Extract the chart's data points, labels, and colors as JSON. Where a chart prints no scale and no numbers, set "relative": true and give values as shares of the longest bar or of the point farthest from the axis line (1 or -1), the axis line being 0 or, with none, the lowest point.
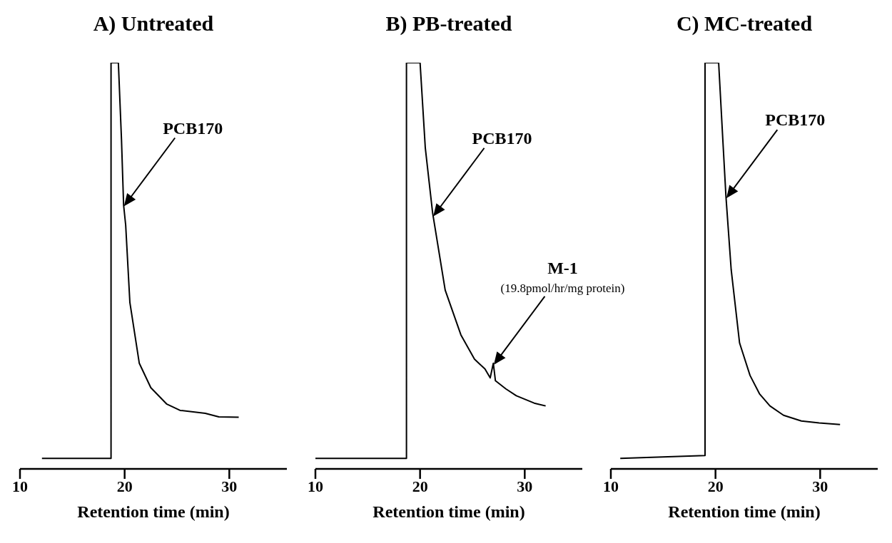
{
  "chart_data": [
    {
      "type": "line",
      "title": "A) Untreated",
      "xlabel": "Retention time (min)",
      "xlim": [
        10,
        35.5
      ],
      "xticks": [
        10,
        20,
        30
      ],
      "relative": true,
      "series": [
        {
          "color": "#000000",
          "x": [
            12.1,
            18.7,
            18.7,
            19.4,
            19.7,
            19.9,
            20.1,
            20.5,
            21.4,
            22.5,
            24.0,
            25.3,
            27.7,
            29.0,
            30.9
          ],
          "values": [
            0.026,
            0.026,
            1,
            1,
            0.81,
            0.65,
            0.6,
            0.41,
            0.26,
            0.2,
            0.16,
            0.144,
            0.137,
            0.128,
            0.127
          ]
        }
      ],
      "annotations": [
        {
          "text": "PCB170",
          "x": 19.9
        }
      ]
    },
    {
      "type": "line",
      "title": "B) PB-treated",
      "xlabel": "Retention time (min)",
      "xlim": [
        10,
        35.5
      ],
      "xticks": [
        10,
        20,
        30
      ],
      "relative": true,
      "series": [
        {
          "color": "#000000",
          "x": [
            10.0,
            18.7,
            18.7,
            20.0,
            20.5,
            21.2,
            22.4,
            23.9,
            25.2,
            26.2,
            26.7,
            27.0,
            27.2,
            28.2,
            29.2,
            30.9,
            32.0
          ],
          "values": [
            0.026,
            0.026,
            1,
            1,
            0.79,
            0.63,
            0.44,
            0.33,
            0.27,
            0.246,
            0.224,
            0.26,
            0.217,
            0.197,
            0.18,
            0.162,
            0.155
          ]
        }
      ],
      "annotations": [
        "PCB170",
        "M-1",
        "(19.8pmol/hr/mg protein)"
      ]
    },
    {
      "type": "line",
      "title": "C) MC-treated",
      "xlabel": "Retention time (min)",
      "xlim": [
        10,
        35.5
      ],
      "xticks": [
        10,
        20,
        30
      ],
      "relative": true,
      "series": [
        {
          "color": "#000000",
          "x": [
            10.9,
            19.0,
            19.0,
            20.3,
            20.7,
            21.0,
            21.5,
            22.3,
            23.3,
            24.2,
            25.2,
            26.5,
            28.2,
            29.9,
            31.9
          ],
          "values": [
            0.026,
            0.033,
            1,
            1,
            0.81,
            0.67,
            0.49,
            0.31,
            0.23,
            0.185,
            0.155,
            0.132,
            0.118,
            0.113,
            0.109
          ]
        }
      ],
      "annotations": [
        {
          "text": "PCB170",
          "x": 21.0
        }
      ]
    }
  ]
}
